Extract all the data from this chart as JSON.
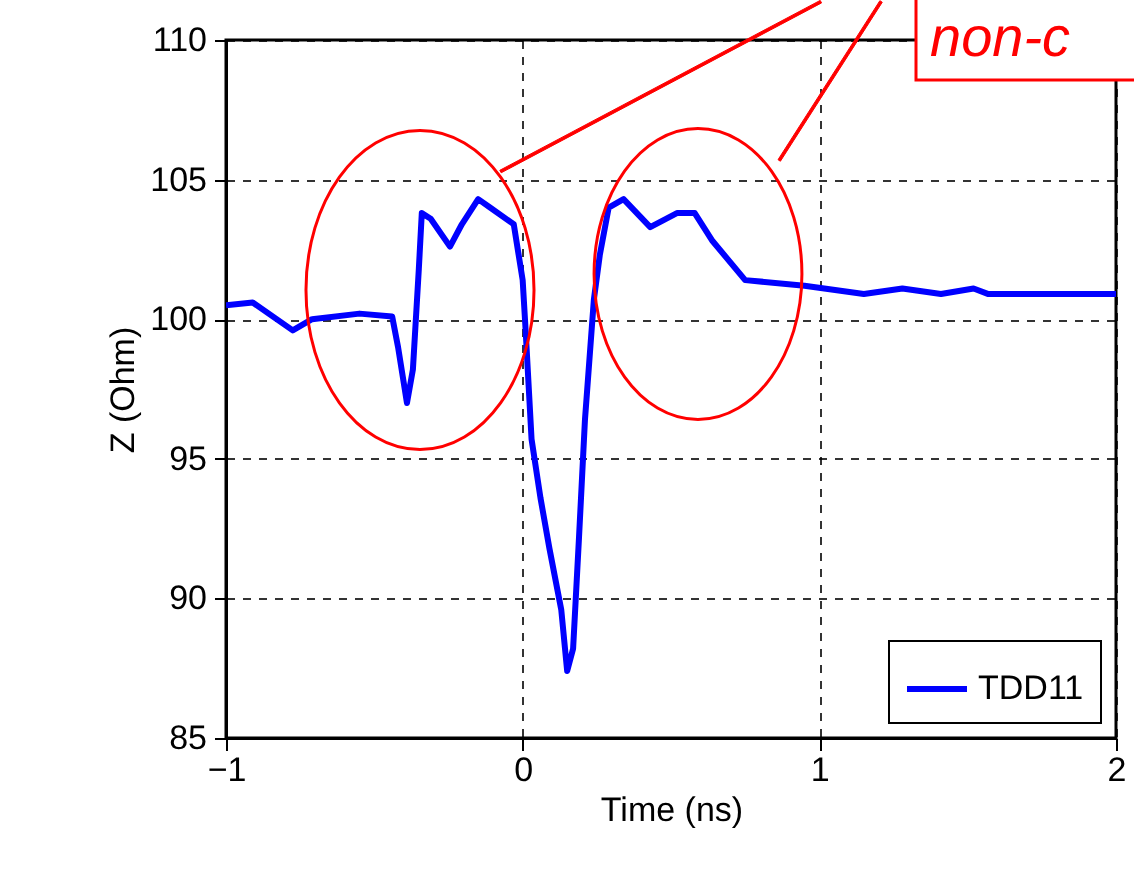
{
  "chart_data": {
    "type": "line",
    "xlabel": "Time (ns)",
    "ylabel": "Z (Ohm)",
    "xlim": [
      -1,
      2
    ],
    "xticks": [
      -1,
      0,
      1,
      2
    ],
    "ylim": [
      85,
      110
    ],
    "yticks": [
      85,
      90,
      95,
      100,
      105,
      110
    ],
    "grid": true,
    "legend": "bottom right",
    "line_style": "solid",
    "marker": "none",
    "annotations": [
      "non-c"
    ],
    "series": [
      {
        "name": "TDD11",
        "color": "#0000ff",
        "x": [
          -1,
          -0.91,
          -0.775,
          -0.71,
          -0.55,
          -0.44,
          -0.42,
          -0.39,
          -0.37,
          -0.35,
          -0.34,
          -0.31,
          -0.245,
          -0.205,
          -0.15,
          -0.11,
          -0.03,
          0,
          0.01,
          0.03,
          0.06,
          0.09,
          0.13,
          0.15,
          0.17,
          0.19,
          0.21,
          0.24,
          0.26,
          0.29,
          0.34,
          0.43,
          0.52,
          0.58,
          0.64,
          0.75,
          0.95,
          1.15,
          1.28,
          1.41,
          1.52,
          1.57,
          2
        ],
        "values": [
          100.5,
          100.6,
          99.6,
          100,
          100.2,
          100.1,
          99,
          97,
          98.2,
          101.8,
          103.8,
          103.6,
          102.6,
          103.4,
          104.3,
          104,
          103.4,
          101.4,
          99.6,
          95.7,
          93.6,
          91.8,
          89.6,
          87.4,
          88.2,
          92.2,
          96.4,
          100.7,
          102.3,
          104,
          104.3,
          103.3,
          103.8,
          103.8,
          102.8,
          101.4,
          101.2,
          100.9,
          101.1,
          100.9,
          101.1,
          100.9,
          100.9
        ]
      }
    ]
  }
}
